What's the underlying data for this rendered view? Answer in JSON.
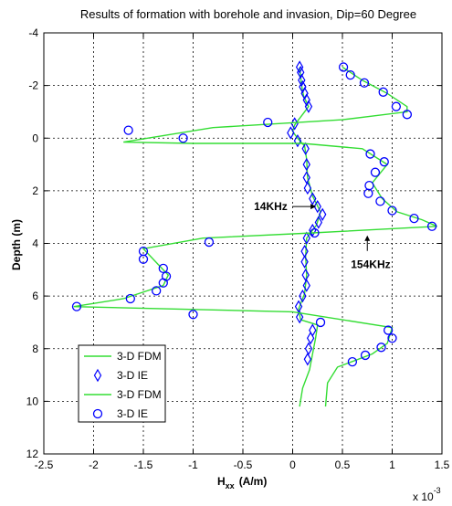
{
  "chart_data": {
    "type": "line",
    "title": "Results of formation with borehole and invasion, Dip=60 Degree",
    "xlabel": "H",
    "xlabel_sub": "xx",
    "xlabel_unit": "(A/m)",
    "ylabel": "Depth (m)",
    "x_multiplier_label": "x 10",
    "x_multiplier_exp": "-3",
    "xlim": [
      -2.5,
      1.5
    ],
    "ylim": [
      12,
      -4
    ],
    "xticks": [
      -2.5,
      -2,
      -1.5,
      -1,
      -0.5,
      0,
      0.5,
      1,
      1.5
    ],
    "xtick_labels": [
      "-2.5",
      "-2",
      "-1.5",
      "-1",
      "-0.5",
      "0",
      "0.5",
      "1",
      "1.5"
    ],
    "yticks": [
      -4,
      -2,
      0,
      2,
      4,
      6,
      8,
      10,
      12
    ],
    "ytick_labels": [
      "-4",
      "-2",
      "0",
      "2",
      "4",
      "6",
      "8",
      "10",
      "12"
    ],
    "grid": true,
    "legend_position": "bottom-left",
    "annotations": [
      {
        "text": "14KHz",
        "x": 0.18,
        "y": 2.6,
        "arrow_dir": "right"
      },
      {
        "text": "154KHz",
        "x": 0.75,
        "y": 3.8,
        "arrow_dir": "up"
      }
    ],
    "series": [
      {
        "name": "3-D FDM",
        "style": "line",
        "color": "#33dd33",
        "points": [
          [
            0.07,
            -2.7
          ],
          [
            0.09,
            -2.0
          ],
          [
            0.11,
            -1.6
          ],
          [
            0.16,
            -1.2
          ],
          [
            0.1,
            -0.9
          ],
          [
            0.06,
            -0.7
          ],
          [
            0.02,
            -0.5
          ],
          [
            0.0,
            -0.25
          ],
          [
            0.05,
            0.0
          ],
          [
            0.12,
            0.3
          ],
          [
            0.14,
            0.8
          ],
          [
            0.15,
            1.5
          ],
          [
            0.2,
            2.2
          ],
          [
            0.28,
            2.8
          ],
          [
            0.24,
            3.3
          ],
          [
            0.14,
            3.8
          ],
          [
            0.13,
            4.5
          ],
          [
            0.14,
            5.2
          ],
          [
            0.12,
            5.9
          ],
          [
            0.06,
            6.5
          ],
          [
            0.08,
            6.9
          ],
          [
            0.25,
            7.1
          ],
          [
            0.23,
            7.6
          ],
          [
            0.2,
            8.2
          ],
          [
            0.17,
            8.8
          ],
          [
            0.1,
            9.5
          ],
          [
            0.07,
            10.2
          ]
        ]
      },
      {
        "name": "3-D IE",
        "style": "diamond",
        "color": "#0000ff",
        "points": [
          [
            0.07,
            -2.7
          ],
          [
            0.08,
            -2.5
          ],
          [
            0.09,
            -2.2
          ],
          [
            0.1,
            -1.95
          ],
          [
            0.12,
            -1.7
          ],
          [
            0.14,
            -1.45
          ],
          [
            0.16,
            -1.2
          ],
          [
            0.02,
            -0.55
          ],
          [
            -0.02,
            -0.2
          ],
          [
            0.05,
            0.1
          ],
          [
            0.13,
            0.4
          ],
          [
            0.14,
            1.0
          ],
          [
            0.14,
            1.5
          ],
          [
            0.15,
            1.9
          ],
          [
            0.2,
            2.3
          ],
          [
            0.25,
            2.6
          ],
          [
            0.3,
            2.9
          ],
          [
            0.26,
            3.2
          ],
          [
            0.2,
            3.5
          ],
          [
            0.14,
            3.8
          ],
          [
            0.12,
            4.3
          ],
          [
            0.12,
            4.7
          ],
          [
            0.13,
            5.2
          ],
          [
            0.14,
            5.6
          ],
          [
            0.1,
            6.0
          ],
          [
            0.06,
            6.4
          ],
          [
            0.07,
            6.8
          ],
          [
            0.2,
            7.3
          ],
          [
            0.18,
            7.6
          ],
          [
            0.16,
            8.0
          ],
          [
            0.15,
            8.4
          ]
        ]
      },
      {
        "name": "3-D FDM",
        "style": "line",
        "color": "#33dd33",
        "points": [
          [
            0.5,
            -2.7
          ],
          [
            0.7,
            -2.2
          ],
          [
            0.95,
            -1.7
          ],
          [
            1.15,
            -1.2
          ],
          [
            1.15,
            -1.0
          ],
          [
            0.5,
            -0.7
          ],
          [
            -0.8,
            -0.4
          ],
          [
            -1.7,
            0.15
          ],
          [
            -1.0,
            0.2
          ],
          [
            0.1,
            0.2
          ],
          [
            0.7,
            0.4
          ],
          [
            0.95,
            1.0
          ],
          [
            0.8,
            1.7
          ],
          [
            0.9,
            2.3
          ],
          [
            1.05,
            2.8
          ],
          [
            1.3,
            3.1
          ],
          [
            1.45,
            3.35
          ],
          [
            0.2,
            3.6
          ],
          [
            -0.9,
            3.8
          ],
          [
            -1.5,
            4.2
          ],
          [
            -1.35,
            4.8
          ],
          [
            -1.25,
            5.2
          ],
          [
            -1.3,
            5.6
          ],
          [
            -1.7,
            6.1
          ],
          [
            -2.2,
            6.4
          ],
          [
            0.0,
            6.6
          ],
          [
            1.0,
            7.2
          ],
          [
            0.95,
            7.8
          ],
          [
            0.8,
            8.2
          ],
          [
            0.45,
            8.7
          ],
          [
            0.35,
            9.3
          ],
          [
            0.33,
            10.2
          ]
        ]
      },
      {
        "name": "3-D IE",
        "style": "circle",
        "color": "#0000ff",
        "points": [
          [
            0.51,
            -2.7
          ],
          [
            0.58,
            -2.4
          ],
          [
            0.72,
            -2.1
          ],
          [
            0.91,
            -1.75
          ],
          [
            1.04,
            -1.2
          ],
          [
            1.15,
            -0.9
          ],
          [
            -0.25,
            -0.6
          ],
          [
            -1.65,
            -0.3
          ],
          [
            -1.1,
            0.0
          ],
          [
            0.78,
            0.6
          ],
          [
            0.92,
            0.9
          ],
          [
            0.83,
            1.3
          ],
          [
            0.77,
            1.8
          ],
          [
            0.76,
            2.1
          ],
          [
            0.88,
            2.4
          ],
          [
            1.0,
            2.75
          ],
          [
            1.22,
            3.05
          ],
          [
            1.4,
            3.35
          ],
          [
            0.22,
            3.6
          ],
          [
            -0.84,
            3.95
          ],
          [
            -1.5,
            4.3
          ],
          [
            -1.5,
            4.6
          ],
          [
            -1.3,
            4.95
          ],
          [
            -1.27,
            5.25
          ],
          [
            -1.3,
            5.5
          ],
          [
            -1.37,
            5.8
          ],
          [
            -1.63,
            6.1
          ],
          [
            -2.17,
            6.4
          ],
          [
            -1.0,
            6.7
          ],
          [
            0.28,
            7.0
          ],
          [
            0.96,
            7.3
          ],
          [
            1.0,
            7.6
          ],
          [
            0.89,
            7.95
          ],
          [
            0.73,
            8.25
          ],
          [
            0.6,
            8.5
          ]
        ]
      }
    ]
  }
}
